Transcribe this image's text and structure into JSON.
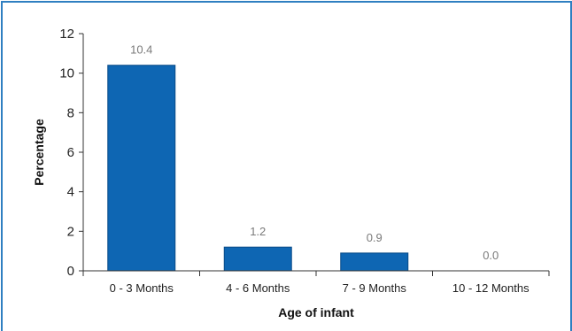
{
  "chart_data": {
    "type": "bar",
    "categories": [
      "0 - 3 Months",
      "4 - 6 Months",
      "7 - 9 Months",
      "10 - 12 Months"
    ],
    "values": [
      10.4,
      1.2,
      0.9,
      0.0
    ],
    "data_labels": [
      "10.4",
      "1.2",
      "0.9",
      "0.0"
    ],
    "xlabel": "Age of infant",
    "ylabel": "Percentage",
    "ylim": [
      0,
      12
    ],
    "yticks": [
      "0",
      "2",
      "4",
      "6",
      "8",
      "10",
      "12"
    ],
    "grid": false,
    "legend": "none",
    "colors": {
      "bar": "#0e66b3",
      "bar_edge": "#084a87",
      "frame": "#2f7fc1",
      "data_label": "#7a7a7a"
    }
  }
}
